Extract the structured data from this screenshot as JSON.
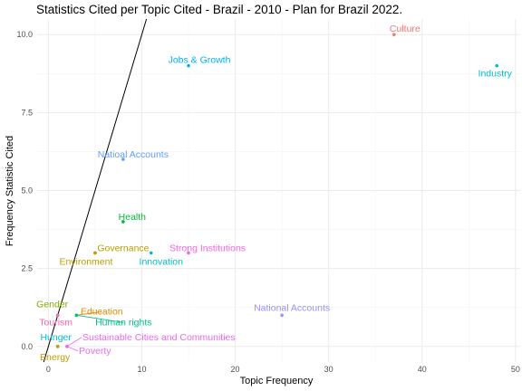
{
  "chart_data": {
    "type": "scatter",
    "title": "Statistics Cited per Topic Cited - Brazil - 2010 - Plan for Brazil 2022.",
    "xlabel": "Topic Frequency",
    "ylabel": "Frequency Statistic Cited",
    "xlim": [
      -1.2,
      50.5
    ],
    "ylim": [
      -0.5,
      10.5
    ],
    "x_ticks": [
      0,
      10,
      20,
      30,
      40,
      50
    ],
    "y_ticks": [
      0.0,
      2.5,
      5.0,
      7.5,
      10.0
    ],
    "x_tick_labels": [
      "0",
      "10",
      "20",
      "30",
      "40",
      "50"
    ],
    "y_tick_labels": [
      "0.0",
      "2.5",
      "5.0",
      "7.5",
      "10.0"
    ],
    "grid": true,
    "legend": "none",
    "reference_line": {
      "slope": 1,
      "intercept": 0,
      "color": "#000000"
    },
    "points": [
      {
        "label": "Culture",
        "x": 37,
        "y": 10,
        "color": "#F8766D"
      },
      {
        "label": "Jobs & Growth",
        "x": 15,
        "y": 9,
        "color": "#00B0F6"
      },
      {
        "label": "Industry",
        "x": 48,
        "y": 9,
        "color": "#00BFC4"
      },
      {
        "label": "Natioal Accounts",
        "x": 8,
        "y": 6,
        "color": "#619CFF"
      },
      {
        "label": "Health",
        "x": 8,
        "y": 4,
        "color": "#00BA38"
      },
      {
        "label": "Governance",
        "x": 5,
        "y": 3,
        "color": "#B79F00"
      },
      {
        "label": "Environment",
        "x": 5,
        "y": 3,
        "color": "#B79F00"
      },
      {
        "label": "Innovation",
        "x": 11,
        "y": 3,
        "color": "#00BFC4"
      },
      {
        "label": "Strong Institutions",
        "x": 15,
        "y": 3,
        "color": "#F564E3"
      },
      {
        "label": "National Accounts",
        "x": 25,
        "y": 1,
        "color": "#9590FF"
      },
      {
        "label": "Gender",
        "x": 1,
        "y": 1,
        "color": "#7CAE00"
      },
      {
        "label": "Education",
        "x": 3,
        "y": 1,
        "color": "#DE8C00"
      },
      {
        "label": "Tourism",
        "x": 1,
        "y": 1,
        "color": "#FF64B0"
      },
      {
        "label": "Human rights",
        "x": 3,
        "y": 1,
        "color": "#00C08B"
      },
      {
        "label": "Hunger",
        "x": 1,
        "y": 0,
        "color": "#00BCD8"
      },
      {
        "label": "Sustainable Cities and Communities",
        "x": 2,
        "y": 0,
        "color": "#EF67EB"
      },
      {
        "label": "Poverty",
        "x": 2,
        "y": 0,
        "color": "#E76BF3"
      },
      {
        "label": "Energy",
        "x": 1,
        "y": 0,
        "color": "#C49A00"
      }
    ]
  }
}
